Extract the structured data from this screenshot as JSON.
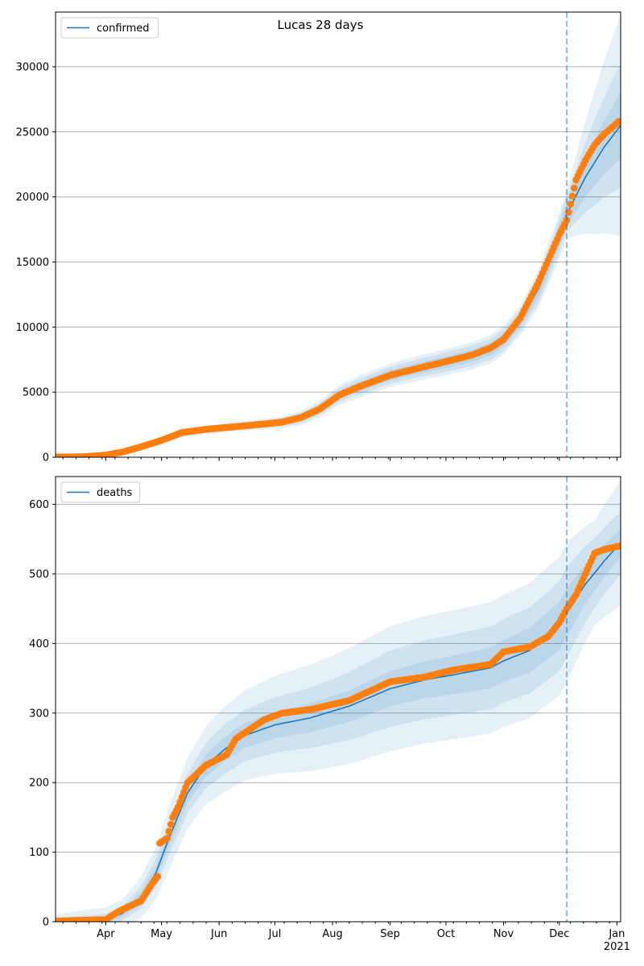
{
  "figure_title": "Lucas 28 days",
  "colors": {
    "model_line": "#1f77b4",
    "observed": "#ff7f0e",
    "band": "#1f77b4",
    "grid": "#b0b0b0",
    "cutoff": "#1f77b4"
  },
  "x_axis": {
    "range": [
      "2020-03-05",
      "2021-01-03"
    ],
    "month_ticks": [
      {
        "date": "2020-04-01",
        "label": "Apr"
      },
      {
        "date": "2020-05-01",
        "label": "May"
      },
      {
        "date": "2020-06-01",
        "label": "Jun"
      },
      {
        "date": "2020-07-01",
        "label": "Jul"
      },
      {
        "date": "2020-08-01",
        "label": "Aug"
      },
      {
        "date": "2020-09-01",
        "label": "Sep"
      },
      {
        "date": "2020-10-01",
        "label": "Oct"
      },
      {
        "date": "2020-11-01",
        "label": "Nov"
      },
      {
        "date": "2020-12-01",
        "label": "Dec"
      },
      {
        "date": "2021-01-01",
        "label": "Jan",
        "sublabel": "2021"
      }
    ],
    "minor_tick_weekday": "Monday"
  },
  "chart_data": [
    {
      "type": "line",
      "legend": "confirmed",
      "legend_position": "top-left",
      "grid": "horizontal",
      "ylim": [
        0,
        34200
      ],
      "yticks": [
        0,
        5000,
        10000,
        15000,
        20000,
        25000,
        30000
      ],
      "forecast_start": "2020-12-05",
      "model": [
        [
          "2020-03-05",
          20
        ],
        [
          "2020-03-20",
          40
        ],
        [
          "2020-03-31",
          150
        ],
        [
          "2020-04-10",
          400
        ],
        [
          "2020-04-20",
          800
        ],
        [
          "2020-05-01",
          1300
        ],
        [
          "2020-05-12",
          1800
        ],
        [
          "2020-05-25",
          2100
        ],
        [
          "2020-06-10",
          2350
        ],
        [
          "2020-06-25",
          2550
        ],
        [
          "2020-07-05",
          2700
        ],
        [
          "2020-07-15",
          3000
        ],
        [
          "2020-07-25",
          3700
        ],
        [
          "2020-08-05",
          4800
        ],
        [
          "2020-08-15",
          5400
        ],
        [
          "2020-09-01",
          6300
        ],
        [
          "2020-09-15",
          6800
        ],
        [
          "2020-10-01",
          7300
        ],
        [
          "2020-10-15",
          7800
        ],
        [
          "2020-10-25",
          8300
        ],
        [
          "2020-11-01",
          9000
        ],
        [
          "2020-11-10",
          10500
        ],
        [
          "2020-11-20",
          13000
        ],
        [
          "2020-12-01",
          17000
        ],
        [
          "2020-12-05",
          18700
        ],
        [
          "2020-12-15",
          21500
        ],
        [
          "2020-12-25",
          23800
        ],
        [
          "2021-01-03",
          25500
        ]
      ],
      "bands": [
        {
          "spread": [
            [
              "2020-03-05",
              30
            ],
            [
              "2020-07-01",
              150
            ],
            [
              "2020-08-15",
              350
            ],
            [
              "2020-10-01",
              450
            ],
            [
              "2020-11-10",
              500
            ],
            [
              "2020-12-05",
              900
            ],
            [
              "2020-12-20",
              1800
            ],
            [
              "2021-01-03",
              2500
            ]
          ]
        },
        {
          "spread": [
            [
              "2020-03-05",
              60
            ],
            [
              "2020-07-01",
              300
            ],
            [
              "2020-08-15",
              600
            ],
            [
              "2020-10-01",
              750
            ],
            [
              "2020-11-10",
              850
            ],
            [
              "2020-12-05",
              1400
            ],
            [
              "2020-12-20",
              3300
            ],
            [
              "2021-01-03",
              4800
            ]
          ]
        },
        {
          "spread": [
            [
              "2020-03-05",
              100
            ],
            [
              "2020-07-01",
              420
            ],
            [
              "2020-08-15",
              850
            ],
            [
              "2020-10-01",
              1000
            ],
            [
              "2020-11-10",
              1150
            ],
            [
              "2020-12-05",
              1900
            ],
            [
              "2020-12-20",
              5500
            ],
            [
              "2021-01-03",
              8500
            ]
          ]
        }
      ],
      "observed": [
        [
          "2020-03-05",
          20
        ],
        [
          "2020-03-20",
          40
        ],
        [
          "2020-03-31",
          150
        ],
        [
          "2020-04-10",
          400
        ],
        [
          "2020-04-20",
          800
        ],
        [
          "2020-05-01",
          1300
        ],
        [
          "2020-05-12",
          1900
        ],
        [
          "2020-05-25",
          2150
        ],
        [
          "2020-06-10",
          2350
        ],
        [
          "2020-06-25",
          2550
        ],
        [
          "2020-07-05",
          2700
        ],
        [
          "2020-07-15",
          3050
        ],
        [
          "2020-07-25",
          3700
        ],
        [
          "2020-08-05",
          4800
        ],
        [
          "2020-08-15",
          5400
        ],
        [
          "2020-09-01",
          6300
        ],
        [
          "2020-09-15",
          6800
        ],
        [
          "2020-10-01",
          7350
        ],
        [
          "2020-10-15",
          7850
        ],
        [
          "2020-10-25",
          8400
        ],
        [
          "2020-11-01",
          9050
        ],
        [
          "2020-11-10",
          10700
        ],
        [
          "2020-11-20",
          13500
        ],
        [
          "2020-12-01",
          17100
        ],
        [
          "2020-12-05",
          18200
        ],
        [
          "2020-12-10",
          21300
        ],
        [
          "2020-12-15",
          22800
        ],
        [
          "2020-12-20",
          24000
        ],
        [
          "2020-12-25",
          24800
        ],
        [
          "2021-01-02",
          25800
        ]
      ]
    },
    {
      "type": "line",
      "legend": "deaths",
      "legend_position": "top-left",
      "grid": "horizontal",
      "ylim": [
        0,
        640
      ],
      "yticks": [
        0,
        100,
        200,
        300,
        400,
        500,
        600
      ],
      "forecast_start": "2020-12-05",
      "model": [
        [
          "2020-03-05",
          1
        ],
        [
          "2020-04-01",
          3
        ],
        [
          "2020-04-10",
          12
        ],
        [
          "2020-04-20",
          35
        ],
        [
          "2020-04-28",
          70
        ],
        [
          "2020-05-05",
          120
        ],
        [
          "2020-05-15",
          185
        ],
        [
          "2020-05-25",
          225
        ],
        [
          "2020-06-05",
          250
        ],
        [
          "2020-06-15",
          268
        ],
        [
          "2020-07-01",
          283
        ],
        [
          "2020-07-20",
          293
        ],
        [
          "2020-08-10",
          310
        ],
        [
          "2020-09-01",
          335
        ],
        [
          "2020-09-20",
          348
        ],
        [
          "2020-10-05",
          355
        ],
        [
          "2020-10-25",
          365
        ],
        [
          "2020-11-01",
          375
        ],
        [
          "2020-11-15",
          390
        ],
        [
          "2020-12-01",
          425
        ],
        [
          "2020-12-05",
          445
        ],
        [
          "2020-12-15",
          485
        ],
        [
          "2020-12-25",
          518
        ],
        [
          "2021-01-03",
          545
        ]
      ],
      "bands": [
        {
          "spread": [
            [
              "2020-03-05",
              2
            ],
            [
              "2020-04-10",
              5
            ],
            [
              "2020-05-05",
              12
            ],
            [
              "2020-06-01",
              17
            ],
            [
              "2020-07-15",
              20
            ],
            [
              "2020-09-01",
              25
            ],
            [
              "2020-11-01",
              30
            ],
            [
              "2020-12-05",
              35
            ],
            [
              "2020-12-20",
              25
            ],
            [
              "2021-01-03",
              20
            ]
          ]
        },
        {
          "spread": [
            [
              "2020-03-05",
              4
            ],
            [
              "2020-04-10",
              10
            ],
            [
              "2020-05-05",
              25
            ],
            [
              "2020-06-01",
              35
            ],
            [
              "2020-07-15",
              42
            ],
            [
              "2020-09-01",
              55
            ],
            [
              "2020-11-01",
              60
            ],
            [
              "2020-12-05",
              65
            ],
            [
              "2020-12-20",
              50
            ],
            [
              "2021-01-03",
              45
            ]
          ]
        },
        {
          "spread": [
            [
              "2020-03-05",
              10
            ],
            [
              "2020-04-10",
              20
            ],
            [
              "2020-05-05",
              45
            ],
            [
              "2020-06-01",
              60
            ],
            [
              "2020-07-15",
              75
            ],
            [
              "2020-09-01",
              90
            ],
            [
              "2020-11-01",
              95
            ],
            [
              "2020-12-05",
              100
            ],
            [
              "2020-12-20",
              75
            ],
            [
              "2021-01-03",
              90
            ]
          ]
        }
      ],
      "observed": [
        [
          "2020-03-05",
          1
        ],
        [
          "2020-04-01",
          3
        ],
        [
          "2020-04-08",
          15
        ],
        [
          "2020-04-20",
          30
        ],
        [
          "2020-04-26",
          55
        ],
        [
          "2020-04-29",
          65
        ],
        [
          "2020-04-30",
          113
        ],
        [
          "2020-05-04",
          120
        ],
        [
          "2020-05-07",
          150
        ],
        [
          "2020-05-10",
          165
        ],
        [
          "2020-05-15",
          200
        ],
        [
          "2020-05-25",
          225
        ],
        [
          "2020-06-05",
          240
        ],
        [
          "2020-06-10",
          263
        ],
        [
          "2020-06-25",
          290
        ],
        [
          "2020-07-05",
          300
        ],
        [
          "2020-07-20",
          305
        ],
        [
          "2020-08-10",
          318
        ],
        [
          "2020-09-01",
          345
        ],
        [
          "2020-09-20",
          352
        ],
        [
          "2020-10-05",
          362
        ],
        [
          "2020-10-25",
          370
        ],
        [
          "2020-11-01",
          388
        ],
        [
          "2020-11-15",
          395
        ],
        [
          "2020-11-25",
          410
        ],
        [
          "2020-12-01",
          430
        ],
        [
          "2020-12-05",
          450
        ],
        [
          "2020-12-10",
          470
        ],
        [
          "2020-12-15",
          500
        ],
        [
          "2020-12-20",
          530
        ],
        [
          "2020-12-25",
          535
        ],
        [
          "2021-01-02",
          540
        ]
      ]
    }
  ]
}
